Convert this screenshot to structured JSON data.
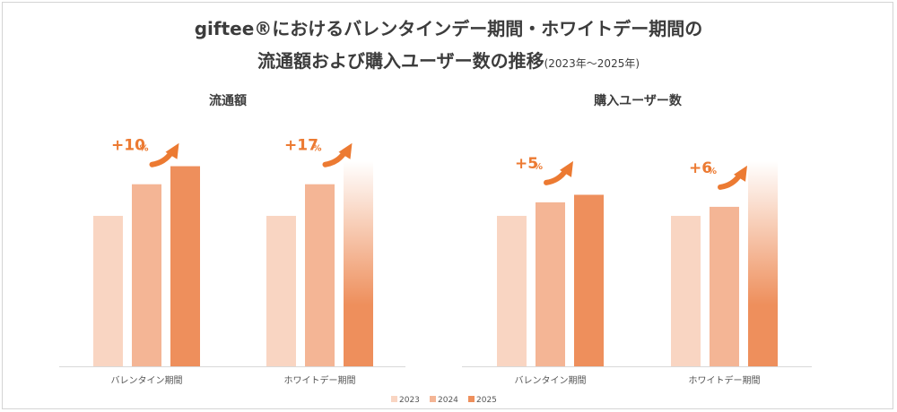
{
  "title": {
    "line1": "giftee®におけるバレンタインデー期間・ホワイトデー期間の",
    "line2": "流通額および購入ユーザー数の推移",
    "line2_note": "(2023年〜2025年)"
  },
  "colors": {
    "2023": "#f9d5c2",
    "2024": "#f4b595",
    "2025": "#ee8f5c",
    "accent": "#ec7a32",
    "axis": "#d9d9d9",
    "text": "#3c3c3c"
  },
  "chart_data": [
    {
      "type": "bar",
      "title": "流通額",
      "categories": [
        "バレンタイン期間",
        "ホワイトデー期間"
      ],
      "series": [
        {
          "name": "2023",
          "values": [
            100,
            100
          ]
        },
        {
          "name": "2024",
          "values": [
            121,
            121
          ]
        },
        {
          "name": "2025",
          "values": [
            133,
            null
          ],
          "partial": [
            false,
            true
          ]
        }
      ],
      "annotations": [
        {
          "category": "バレンタイン期間",
          "value": "+10",
          "unit": "%"
        },
        {
          "category": "ホワイトデー期間",
          "value": "+17",
          "unit": "%"
        }
      ],
      "ylim": [
        0,
        150
      ],
      "ylabel": "",
      "xlabel": ""
    },
    {
      "type": "bar",
      "title": "購入ユーザー数",
      "categories": [
        "バレンタイン期間",
        "ホワイトデー期間"
      ],
      "series": [
        {
          "name": "2023",
          "values": [
            100,
            100
          ]
        },
        {
          "name": "2024",
          "values": [
            109,
            106
          ]
        },
        {
          "name": "2025",
          "values": [
            114,
            null
          ],
          "partial": [
            false,
            true
          ]
        }
      ],
      "annotations": [
        {
          "category": "バレンタイン期間",
          "value": "+5",
          "unit": "%"
        },
        {
          "category": "ホワイトデー期間",
          "value": "+6",
          "unit": "%"
        }
      ],
      "ylim": [
        0,
        150
      ],
      "ylabel": "",
      "xlabel": ""
    }
  ],
  "legend": [
    "2023",
    "2024",
    "2025"
  ]
}
